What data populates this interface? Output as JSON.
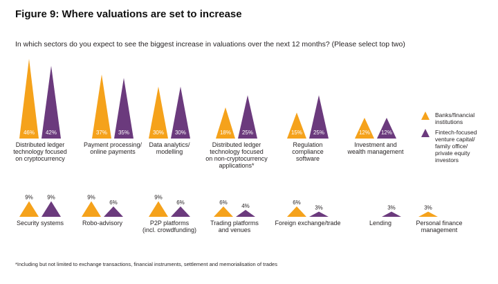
{
  "figure_title": "Figure 9: Where valuations are set to increase",
  "question": "In which sectors do you expect to see the biggest increase in valuations over the next 12 months? (Please select top two)",
  "footnote": "*Including but not limited to exchange transactions, financial instruments, settlement and memorialisation of trades",
  "colors": {
    "banks": "#f5a21b",
    "fintech": "#6b3a7d"
  },
  "chart_data": {
    "type": "bar",
    "title": "Figure 9: Where valuations are set to increase",
    "unit": "%",
    "legend_position": "right",
    "series": [
      {
        "name": "Banks/financial institutions",
        "legend_lines": [
          "Banks/financial",
          "institutions"
        ]
      },
      {
        "name": "Fintech-focused venture capital/ family office/ private equity investors",
        "legend_lines": [
          "Fintech-focused",
          "venture capital/",
          "family office/",
          "private equity",
          "investors"
        ]
      }
    ],
    "categories": [
      {
        "label_lines": [
          "Distributed ledger",
          "technology focused",
          "on cryptocurrency"
        ],
        "values": [
          46,
          42
        ]
      },
      {
        "label_lines": [
          "Payment processing/",
          "online payments"
        ],
        "values": [
          37,
          35
        ]
      },
      {
        "label_lines": [
          "Data analytics/",
          "modelling"
        ],
        "values": [
          30,
          30
        ]
      },
      {
        "label_lines": [
          "Distributed ledger",
          "technology focused",
          "on non-cryptocurrency",
          "applications*"
        ],
        "values": [
          18,
          25
        ]
      },
      {
        "label_lines": [
          "Regulation",
          "compliance",
          "software"
        ],
        "values": [
          15,
          25
        ]
      },
      {
        "label_lines": [
          "Investment and",
          "wealth management"
        ],
        "values": [
          12,
          12
        ]
      },
      {
        "label_lines": [
          "Security systems"
        ],
        "values": [
          9,
          9
        ]
      },
      {
        "label_lines": [
          "Robo-advisory"
        ],
        "values": [
          9,
          6
        ]
      },
      {
        "label_lines": [
          "P2P platforms",
          "(incl. crowdfunding)"
        ],
        "values": [
          9,
          6
        ]
      },
      {
        "label_lines": [
          "Trading platforms",
          "and venues"
        ],
        "values": [
          6,
          4
        ]
      },
      {
        "label_lines": [
          "Foreign exchange/trade"
        ],
        "values": [
          6,
          3
        ]
      },
      {
        "label_lines": [
          "Lending"
        ],
        "values": [
          0,
          3
        ]
      },
      {
        "label_lines": [
          "Personal finance",
          "management"
        ],
        "values": [
          3,
          0
        ]
      }
    ]
  }
}
